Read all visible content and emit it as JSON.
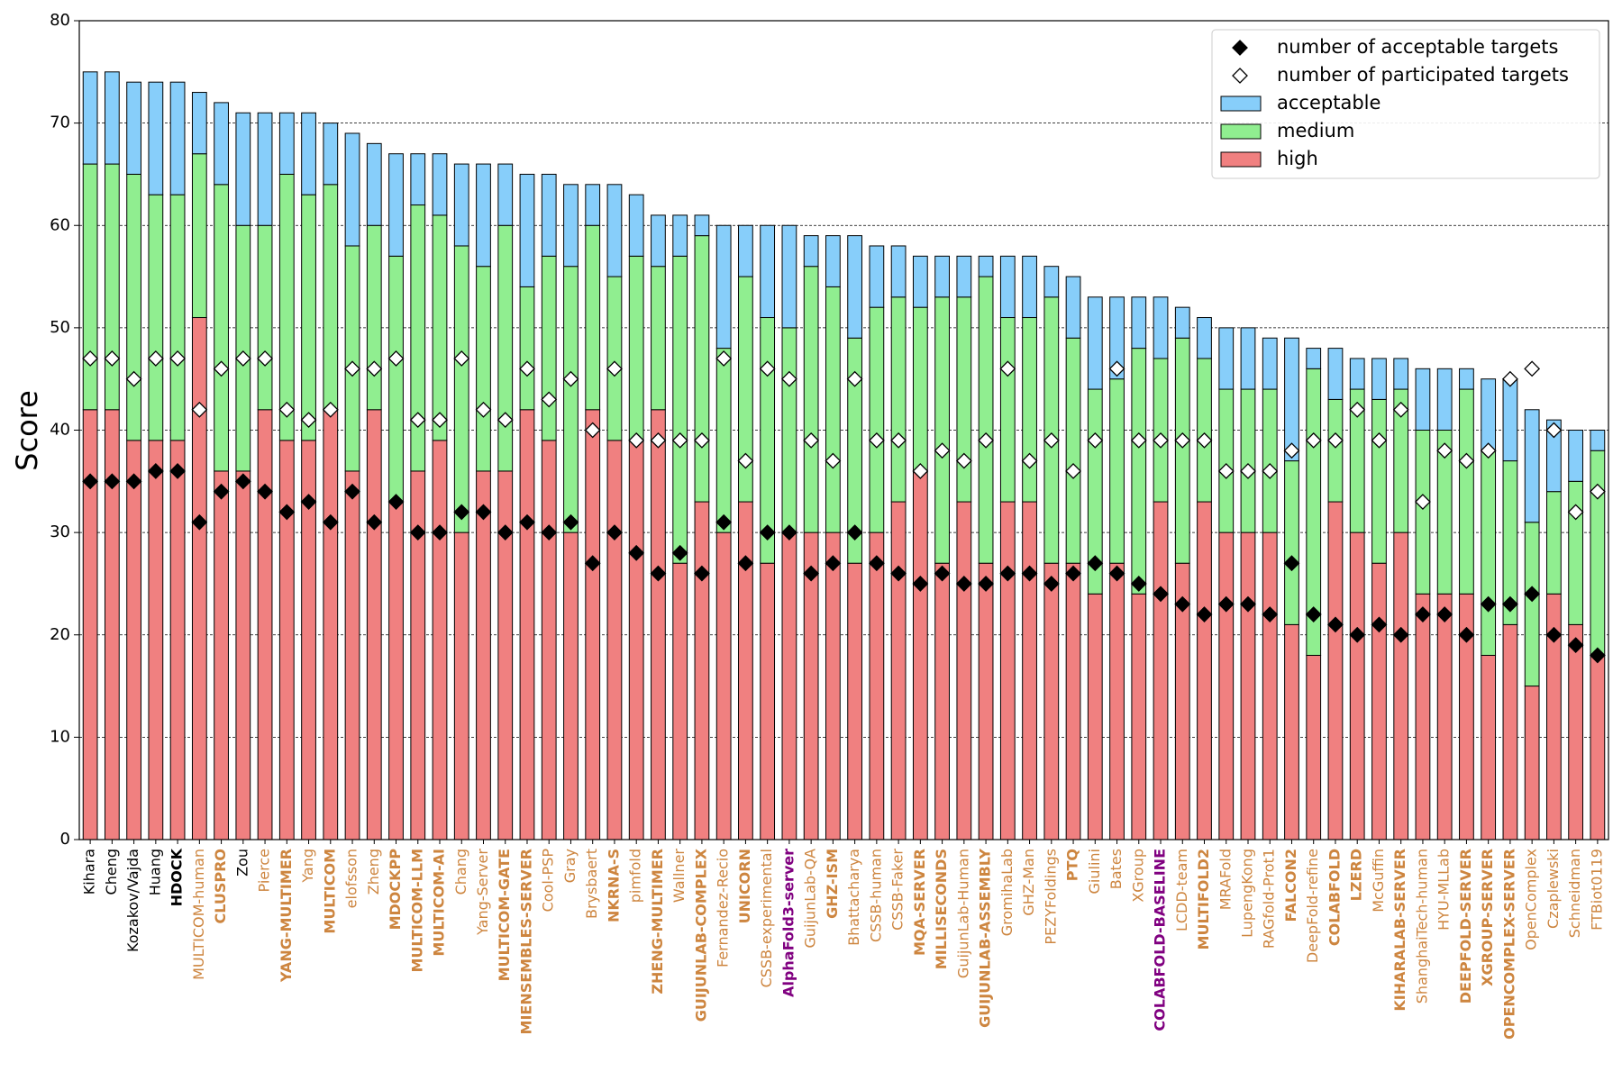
{
  "chart_data": {
    "type": "stacked_bar",
    "ylabel": "Score",
    "ylim": [
      0,
      80
    ],
    "yticks": [
      0,
      10,
      20,
      30,
      40,
      50,
      60,
      70,
      80
    ],
    "grid": true,
    "legend": "upper right",
    "categories": [
      "Kihara",
      "Cheng",
      "Kozakov/Vajda",
      "Huang",
      "HDOCK",
      "MULTICOM-human",
      "CLUSPRO",
      "Zou",
      "Pierce",
      "YANG-MULTIMER",
      "Yang",
      "MULTICOM",
      "elofsson",
      "Zheng",
      "MDOCKPP",
      "MULTICOM-LLM",
      "MULTICOM-AI",
      "Chang",
      "Yang-Server",
      "MULTICOM-GATE",
      "MIENSEMBLES-SERVER",
      "Cool-PSP",
      "Gray",
      "Brysbaert",
      "NKRNA-S",
      "pimfold",
      "ZHENG-MULTIMER",
      "Wallner",
      "GUIJUNLAB-COMPLEX",
      "Fernandez-Recio",
      "UNICORN",
      "CSSB-experimental",
      "AlphaFold3-server",
      "GuijunLab-QA",
      "GHZ-ISM",
      "Bhattacharya",
      "CSSB-human",
      "CSSB-Faker",
      "MQA-SERVER",
      "MILLISECONDS",
      "GuijunLab-Human",
      "GUIJUNLAB-ASSEMBLY",
      "GromihaLab",
      "GHZ-Man",
      "PEZYFoldings",
      "PTQ",
      "Giulini",
      "Bates",
      "XGroup",
      "COLABFOLD-BASELINE",
      "LCDD-team",
      "MULTIFOLD2",
      "MRAFold",
      "LupengKong",
      "RAGfold-Prot1",
      "FALCON2",
      "DeepFold-refine",
      "COLABFOLD",
      "LZERD",
      "McGuffin",
      "KIHARALAB-SERVER",
      "ShanghaiTech-human",
      "HYU-MLLab",
      "DEEPFOLD-SERVER",
      "XGROUP-SERVER",
      "OPENCOMPLEX-SERVER",
      "OpenComplex",
      "Czaplewski",
      "Schneidman",
      "FTBiot0119"
    ],
    "category_colors": [
      "#000000",
      "#000000",
      "#000000",
      "#000000",
      "#000000",
      "#cd853f",
      "#cd853f",
      "#000000",
      "#cd853f",
      "#cd853f",
      "#cd853f",
      "#cd853f",
      "#cd853f",
      "#cd853f",
      "#cd853f",
      "#cd853f",
      "#cd853f",
      "#cd853f",
      "#cd853f",
      "#cd853f",
      "#cd853f",
      "#cd853f",
      "#cd853f",
      "#cd853f",
      "#cd853f",
      "#cd853f",
      "#cd853f",
      "#cd853f",
      "#cd853f",
      "#cd853f",
      "#cd853f",
      "#cd853f",
      "#800080",
      "#cd853f",
      "#cd853f",
      "#cd853f",
      "#cd853f",
      "#cd853f",
      "#cd853f",
      "#cd853f",
      "#cd853f",
      "#cd853f",
      "#cd853f",
      "#cd853f",
      "#cd853f",
      "#cd853f",
      "#cd853f",
      "#cd853f",
      "#cd853f",
      "#800080",
      "#cd853f",
      "#cd853f",
      "#cd853f",
      "#cd853f",
      "#cd853f",
      "#cd853f",
      "#cd853f",
      "#cd853f",
      "#cd853f",
      "#cd853f",
      "#cd853f",
      "#cd853f",
      "#cd853f",
      "#cd853f",
      "#cd853f",
      "#cd853f",
      "#cd853f",
      "#cd853f",
      "#cd853f",
      "#cd853f"
    ],
    "category_bold": [
      false,
      false,
      false,
      false,
      true,
      false,
      true,
      false,
      false,
      true,
      false,
      true,
      false,
      false,
      true,
      true,
      true,
      false,
      false,
      true,
      true,
      false,
      false,
      false,
      true,
      false,
      true,
      false,
      true,
      false,
      true,
      false,
      true,
      false,
      true,
      false,
      false,
      false,
      true,
      true,
      false,
      true,
      false,
      false,
      false,
      true,
      false,
      false,
      false,
      true,
      false,
      true,
      false,
      false,
      false,
      true,
      false,
      true,
      true,
      false,
      true,
      false,
      false,
      true,
      true,
      true,
      false,
      false,
      false,
      false
    ],
    "series": [
      {
        "name": "high",
        "color": "#f08080",
        "values": [
          42,
          42,
          39,
          39,
          39,
          51,
          36,
          36,
          42,
          39,
          39,
          42,
          36,
          42,
          33,
          36,
          39,
          30,
          36,
          36,
          42,
          39,
          30,
          42,
          39,
          39,
          42,
          27,
          33,
          30,
          33,
          27,
          30,
          30,
          30,
          27,
          30,
          33,
          36,
          27,
          33,
          27,
          33,
          33,
          27,
          27,
          24,
          27,
          24,
          33,
          27,
          33,
          30,
          30,
          30,
          21,
          18,
          33,
          30,
          27,
          30,
          24,
          24,
          24,
          18,
          21,
          15,
          24,
          21,
          18
        ]
      },
      {
        "name": "medium",
        "color": "#90ee90",
        "values": [
          24,
          24,
          26,
          24,
          24,
          16,
          28,
          24,
          18,
          26,
          24,
          22,
          22,
          18,
          24,
          26,
          22,
          28,
          20,
          24,
          12,
          18,
          26,
          18,
          16,
          18,
          14,
          30,
          26,
          18,
          22,
          24,
          20,
          26,
          24,
          22,
          22,
          20,
          16,
          26,
          20,
          28,
          18,
          18,
          26,
          22,
          20,
          18,
          24,
          14,
          22,
          14,
          14,
          14,
          14,
          16,
          28,
          10,
          14,
          16,
          14,
          16,
          16,
          20,
          20,
          16,
          16,
          10,
          14,
          20
        ]
      },
      {
        "name": "acceptable",
        "color": "#87cefa",
        "values": [
          9,
          9,
          9,
          11,
          11,
          6,
          8,
          11,
          11,
          6,
          8,
          6,
          11,
          8,
          10,
          5,
          6,
          8,
          10,
          6,
          11,
          8,
          8,
          4,
          9,
          6,
          5,
          4,
          2,
          12,
          5,
          9,
          10,
          3,
          5,
          10,
          6,
          5,
          5,
          4,
          4,
          2,
          6,
          6,
          3,
          6,
          9,
          8,
          5,
          6,
          3,
          4,
          6,
          6,
          5,
          12,
          2,
          5,
          3,
          4,
          3,
          6,
          6,
          2,
          7,
          8,
          11,
          7,
          5,
          2
        ]
      }
    ],
    "points": [
      {
        "name": "number of acceptable targets",
        "fill": "#000000",
        "values": [
          35,
          35,
          35,
          36,
          36,
          31,
          34,
          35,
          34,
          32,
          33,
          31,
          34,
          31,
          33,
          30,
          30,
          32,
          32,
          30,
          31,
          30,
          31,
          27,
          30,
          28,
          26,
          28,
          26,
          31,
          27,
          30,
          30,
          26,
          27,
          30,
          27,
          26,
          25,
          26,
          25,
          25,
          26,
          26,
          25,
          26,
          27,
          26,
          25,
          24,
          23,
          22,
          23,
          23,
          22,
          27,
          22,
          21,
          20,
          21,
          20,
          22,
          22,
          20,
          23,
          23,
          24,
          20,
          19,
          18
        ]
      },
      {
        "name": "number of participated targets",
        "fill": "#ffffff",
        "values": [
          47,
          47,
          45,
          47,
          47,
          42,
          46,
          47,
          47,
          42,
          41,
          42,
          46,
          46,
          47,
          41,
          41,
          47,
          42,
          41,
          46,
          43,
          45,
          40,
          46,
          39,
          39,
          39,
          39,
          47,
          37,
          46,
          45,
          39,
          37,
          45,
          39,
          39,
          36,
          38,
          37,
          39,
          46,
          37,
          39,
          36,
          39,
          46,
          39,
          39,
          39,
          39,
          36,
          36,
          36,
          38,
          39,
          39,
          42,
          39,
          42,
          33,
          38,
          37,
          38,
          45,
          46,
          40,
          32,
          34
        ]
      }
    ]
  }
}
